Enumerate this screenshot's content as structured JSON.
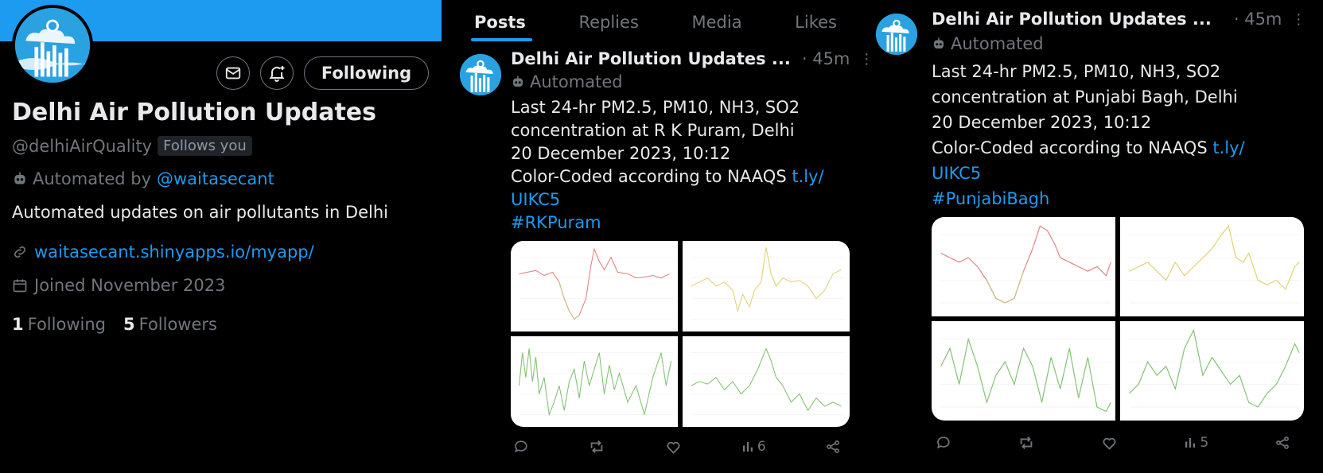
{
  "colors": {
    "accent": "#1d9bf0",
    "banner": "#1d9bf0",
    "muted": "#71767b"
  },
  "profile": {
    "name": "Delhi Air Pollution Updates",
    "handle": "@delhiAirQuality",
    "follows_you": "Follows you",
    "automated_prefix": "Automated by",
    "automated_by": "@waitasecant",
    "bio": "Automated updates on air pollutants in Delhi",
    "url": "waitasecant.shinyapps.io/myapp/",
    "joined": "Joined November 2023",
    "following_count": "1",
    "following_label": "Following",
    "followers_count": "5",
    "followers_label": "Followers",
    "follow_button": "Following",
    "icons": {
      "message": "mail-icon",
      "notify": "bell-plus-icon",
      "link": "link-icon",
      "calendar": "calendar-icon",
      "bot": "bot-icon"
    }
  },
  "tabs": [
    {
      "label": "Posts",
      "active": true
    },
    {
      "label": "Replies",
      "active": false
    },
    {
      "label": "Media",
      "active": false
    },
    {
      "label": "Likes",
      "active": false
    }
  ],
  "tweets": [
    {
      "author": "Delhi Air Pollution Updates ...",
      "time": "· 45m",
      "automated": "Automated",
      "lines": [
        "Last 24-hr PM2.5, PM10, NH3, SO2",
        "concentration at R K Puram, Delhi",
        "20 December 2023, 10:12"
      ],
      "naaqs_text": "Color-Coded according to NAAQS ",
      "link_part1": "t.ly/",
      "link_part2": "UIKC5",
      "hashtag": "#RKPuram",
      "views": "6"
    },
    {
      "author": "Delhi Air Pollution Updates ...",
      "time": "· 45m",
      "automated": "Automated",
      "lines": [
        "Last 24-hr PM2.5, PM10, NH3, SO2",
        "concentration at Punjabi Bagh, Delhi",
        "20 December 2023, 10:12"
      ],
      "naaqs_text": "Color-Coded according to NAAQS ",
      "link_part1": "t.ly/",
      "link_part2": "UIKC5",
      "hashtag": "#PunjabiBagh",
      "views": "5"
    }
  ]
}
